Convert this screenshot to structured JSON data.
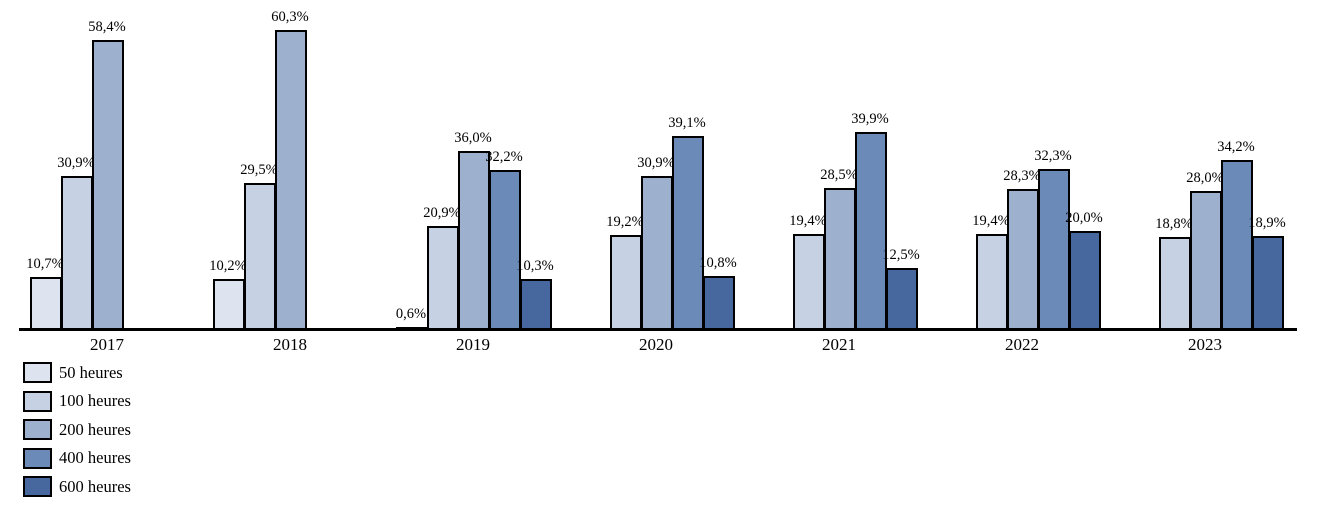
{
  "chart_data": {
    "type": "bar",
    "title": "",
    "xlabel": "",
    "ylabel": "",
    "grid": false,
    "legend_position": "bottom-left",
    "value_suffix": "%",
    "decimal_separator": ",",
    "ylim": [
      0,
      66
    ],
    "categories": [
      "2017",
      "2018",
      "2019",
      "2020",
      "2021",
      "2022",
      "2023"
    ],
    "series": [
      {
        "name": "50 heures",
        "color": "#dee4ef",
        "values": [
          10.7,
          10.2,
          0.6,
          null,
          null,
          null,
          null
        ],
        "labels": [
          "10,7%",
          "10,2%",
          "0,6%",
          null,
          null,
          null,
          null
        ]
      },
      {
        "name": "100 heures",
        "color": "#c6d1e3",
        "values": [
          30.9,
          29.5,
          20.9,
          19.2,
          19.4,
          19.4,
          18.8
        ],
        "labels": [
          "30,9%",
          "29,5%",
          "20,9%",
          "19,2%",
          "19,4%",
          "19,4%",
          "18,8%"
        ]
      },
      {
        "name": "200 heures",
        "color": "#9db0ce",
        "values": [
          58.4,
          60.3,
          36.0,
          30.9,
          28.5,
          28.3,
          28.0
        ],
        "labels": [
          "58,4%",
          "60,3%",
          "36,0%",
          "30,9%",
          "28,5%",
          "28,3%",
          "28,0%"
        ]
      },
      {
        "name": "400 heures",
        "color": "#6c8ab8",
        "values": [
          null,
          null,
          32.2,
          39.1,
          39.9,
          32.3,
          34.2
        ],
        "labels": [
          null,
          null,
          "32,2%",
          "39,1%",
          "39,9%",
          "32,3%",
          "34,2%"
        ]
      },
      {
        "name": "600 heures",
        "color": "#47689e",
        "values": [
          null,
          null,
          10.3,
          10.8,
          12.5,
          20.0,
          18.9
        ],
        "labels": [
          null,
          null,
          "10,3%",
          "10,8%",
          "12,5%",
          "20,0%",
          "18,9%"
        ]
      }
    ],
    "axis_color": "#000000",
    "bar_border_color": "#000000",
    "label_color": "#000000"
  }
}
